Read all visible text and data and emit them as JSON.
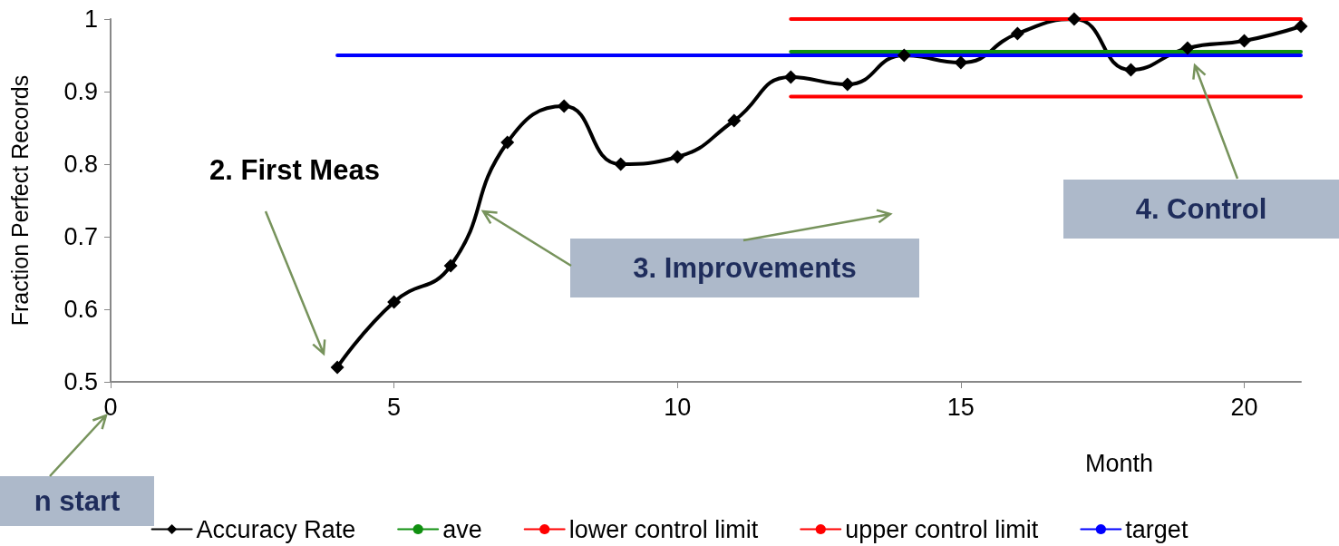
{
  "chart_data": {
    "type": "line",
    "xlabel": "Month",
    "ylabel": "Fraction Perfect Records",
    "x": [
      4,
      5,
      6,
      7,
      8,
      9,
      10,
      11,
      12,
      13,
      14,
      15,
      16,
      17,
      18,
      19,
      20,
      21
    ],
    "series": [
      {
        "name": "Accuracy Rate",
        "color": "#000000",
        "marker": "diamond",
        "values": [
          0.52,
          0.61,
          0.66,
          0.83,
          0.88,
          0.8,
          0.81,
          0.86,
          0.92,
          0.91,
          0.95,
          0.94,
          0.98,
          1.0,
          0.93,
          0.96,
          0.97,
          0.99
        ]
      },
      {
        "name": "ave",
        "color": "#109010",
        "marker": "none",
        "x": [
          12,
          21
        ],
        "values": [
          0.955,
          0.955
        ]
      },
      {
        "name": "lower control limit",
        "color": "#ff0000",
        "marker": "none",
        "x": [
          12,
          21
        ],
        "values": [
          0.893,
          0.893
        ]
      },
      {
        "name": "upper control limit",
        "color": "#ff0000",
        "marker": "none",
        "x": [
          12,
          21
        ],
        "values": [
          1.0,
          1.0
        ]
      },
      {
        "name": "target",
        "color": "#0000ff",
        "marker": "none",
        "x": [
          4,
          21
        ],
        "values": [
          0.95,
          0.95
        ]
      }
    ],
    "xlim": [
      0,
      21
    ],
    "xticks": [
      0,
      5,
      10,
      15,
      20
    ],
    "ylim": [
      0.5,
      1
    ],
    "yticks": [
      0.5,
      0.6,
      0.7,
      0.8,
      0.9,
      1
    ],
    "grid": false,
    "legend": "bottom",
    "line_style": "solid",
    "annotations": [
      "2.  First Meas",
      "3.  Improvements",
      "4. Control",
      "n start"
    ]
  }
}
